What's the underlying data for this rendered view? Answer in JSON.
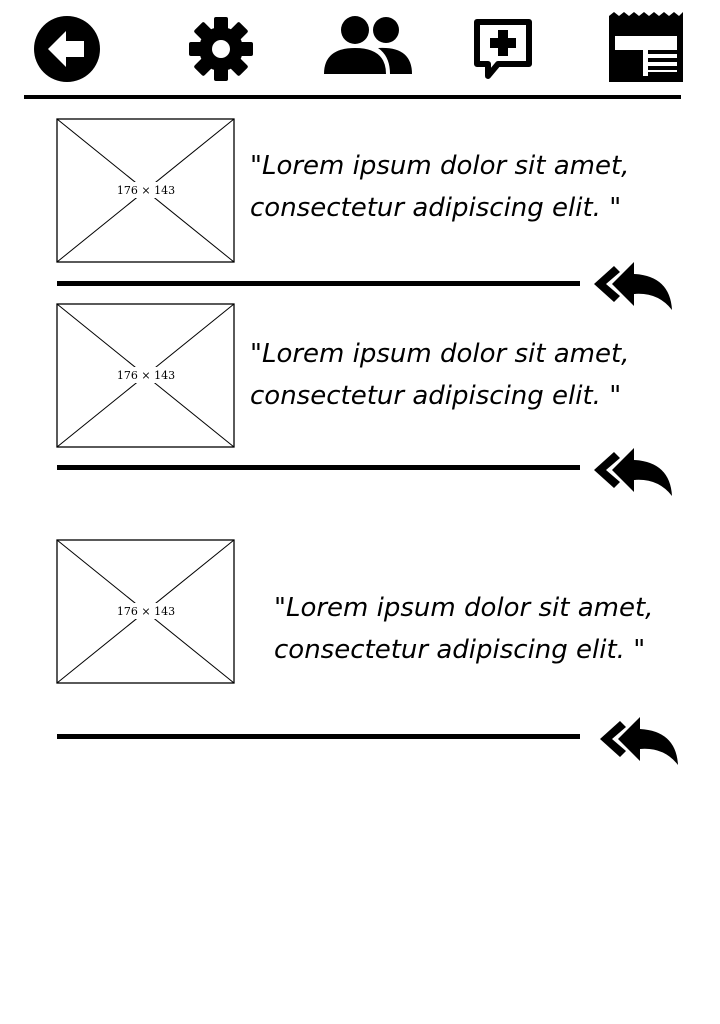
{
  "toolbar": {
    "icons": [
      "back-icon",
      "settings-icon",
      "users-icon",
      "add-comment-icon",
      "newspaper-icon"
    ]
  },
  "posts": [
    {
      "image_label": "176 × 143",
      "quote_line1": "\"Lorem ipsum dolor sit amet,",
      "quote_line2": "consectetur adipiscing elit. \""
    },
    {
      "image_label": "176 × 143",
      "quote_line1": "\"Lorem ipsum dolor sit amet,",
      "quote_line2": "consectetur adipiscing elit. \""
    },
    {
      "image_label": "176 × 143",
      "quote_line1": "\"Lorem ipsum dolor sit amet,",
      "quote_line2": "consectetur adipiscing elit. \""
    }
  ]
}
